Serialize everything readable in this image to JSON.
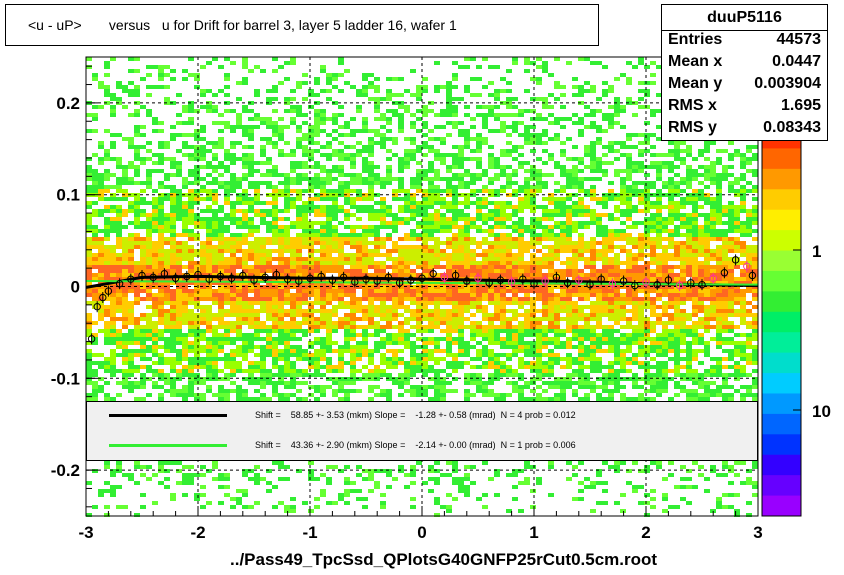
{
  "title": "<u - uP>       versus   u for Drift for barrel 3, layer 5 ladder 16, wafer 1",
  "stats": {
    "name": "duuP5116",
    "rows": [
      {
        "label": "Entries",
        "value": "44573"
      },
      {
        "label": "Mean x",
        "value": "0.0447"
      },
      {
        "label": "Mean y",
        "value": "0.003904"
      },
      {
        "label": "RMS x",
        "value": "1.695"
      },
      {
        "label": "RMS y",
        "value": "0.08343"
      }
    ]
  },
  "legend": [
    {
      "color": "#000000",
      "text": "Shift =    58.85 +- 3.53 (mkm) Slope =    -1.28 +- 0.58 (mrad)  N = 4 prob = 0.012"
    },
    {
      "color": "#33ee33",
      "text": "Shift =    43.36 +- 2.90 (mkm) Slope =    -2.14 +- 0.00 (mrad)  N = 1 prob = 0.006"
    }
  ],
  "xaxis_title": "../Pass49_TpcSsd_QPlotsG40GNFP25rCut0.5cm.root",
  "colors": {
    "fit_black": "#000000",
    "fit_green": "#33ee33",
    "profile_open": "#000000",
    "profile_pink": "#ff3399"
  },
  "chart_data": {
    "type": "heatmap",
    "xlim": [
      -3,
      3
    ],
    "ylim": [
      -0.25,
      0.25
    ],
    "xticks": [
      -3,
      -2,
      -1,
      0,
      1,
      2,
      3
    ],
    "xtick_labels": [
      "-3",
      "-2",
      "-1",
      "0",
      "1",
      "2",
      "3"
    ],
    "yticks": [
      -0.2,
      -0.1,
      0,
      0.1,
      0.2
    ],
    "ytick_labels": [
      "-0.2",
      "-0.1",
      "0",
      "0.1",
      "0.2"
    ],
    "grid": true,
    "colorbar": {
      "tick_labels": [
        "1",
        "10"
      ],
      "scale": "log"
    },
    "fits": [
      {
        "name": "black",
        "x": [
          -3,
          -2.5,
          -2,
          -1.5,
          -1,
          -0.5,
          0,
          0.5,
          1,
          1.5,
          2,
          2.5,
          3
        ],
        "y": [
          -0.001,
          0.01,
          0.011,
          0.01,
          0.009,
          0.009,
          0.008,
          0.007,
          0.006,
          0.005,
          0.003,
          0.002,
          0.001
        ]
      },
      {
        "name": "green",
        "x": [
          -3,
          0,
          3
        ],
        "y": [
          0.006,
          0.004,
          0.002
        ]
      }
    ],
    "profile_points": [
      {
        "x": -2.95,
        "y": -0.057
      },
      {
        "x": -2.9,
        "y": -0.022
      },
      {
        "x": -2.85,
        "y": -0.012
      },
      {
        "x": -2.8,
        "y": -0.005
      },
      {
        "x": -2.7,
        "y": 0.003
      },
      {
        "x": -2.6,
        "y": 0.008
      },
      {
        "x": -2.5,
        "y": 0.012
      },
      {
        "x": -2.4,
        "y": 0.01
      },
      {
        "x": -2.3,
        "y": 0.014
      },
      {
        "x": -2.2,
        "y": 0.009
      },
      {
        "x": -2.1,
        "y": 0.011
      },
      {
        "x": -2.0,
        "y": 0.013
      },
      {
        "x": -1.9,
        "y": 0.008
      },
      {
        "x": -1.8,
        "y": 0.011
      },
      {
        "x": -1.7,
        "y": 0.009
      },
      {
        "x": -1.6,
        "y": 0.012
      },
      {
        "x": -1.5,
        "y": 0.007
      },
      {
        "x": -1.4,
        "y": 0.01
      },
      {
        "x": -1.3,
        "y": 0.013
      },
      {
        "x": -1.2,
        "y": 0.008
      },
      {
        "x": -1.1,
        "y": 0.006
      },
      {
        "x": -1.0,
        "y": 0.009
      },
      {
        "x": -0.9,
        "y": 0.011
      },
      {
        "x": -0.8,
        "y": 0.007
      },
      {
        "x": -0.7,
        "y": 0.01
      },
      {
        "x": -0.6,
        "y": 0.005
      },
      {
        "x": -0.5,
        "y": 0.008
      },
      {
        "x": -0.4,
        "y": 0.006
      },
      {
        "x": -0.3,
        "y": 0.01
      },
      {
        "x": -0.2,
        "y": 0.004
      },
      {
        "x": -0.1,
        "y": 0.007
      },
      {
        "x": 0.0,
        "y": 0.009
      },
      {
        "x": 0.1,
        "y": 0.014
      },
      {
        "x": 0.2,
        "y": 0.01
      },
      {
        "x": 0.3,
        "y": 0.012
      },
      {
        "x": 0.4,
        "y": 0.006
      },
      {
        "x": 0.5,
        "y": 0.009
      },
      {
        "x": 0.6,
        "y": 0.004
      },
      {
        "x": 0.7,
        "y": 0.007
      },
      {
        "x": 0.8,
        "y": 0.005
      },
      {
        "x": 0.9,
        "y": 0.008
      },
      {
        "x": 1.0,
        "y": 0.003
      },
      {
        "x": 1.1,
        "y": 0.006
      },
      {
        "x": 1.2,
        "y": 0.01
      },
      {
        "x": 1.3,
        "y": 0.004
      },
      {
        "x": 1.4,
        "y": 0.007
      },
      {
        "x": 1.5,
        "y": 0.002
      },
      {
        "x": 1.6,
        "y": 0.008
      },
      {
        "x": 1.7,
        "y": 0.003
      },
      {
        "x": 1.8,
        "y": 0.006
      },
      {
        "x": 1.9,
        "y": 0.001
      },
      {
        "x": 2.0,
        "y": 0.005
      },
      {
        "x": 2.1,
        "y": 0.002
      },
      {
        "x": 2.2,
        "y": 0.007
      },
      {
        "x": 2.3,
        "y": 0.001
      },
      {
        "x": 2.4,
        "y": 0.004
      },
      {
        "x": 2.5,
        "y": 0.002
      },
      {
        "x": 2.6,
        "y": 0.009
      },
      {
        "x": 2.7,
        "y": 0.015
      },
      {
        "x": 2.8,
        "y": 0.029
      },
      {
        "x": 2.9,
        "y": 0.022
      },
      {
        "x": 2.95,
        "y": 0.012
      }
    ]
  }
}
